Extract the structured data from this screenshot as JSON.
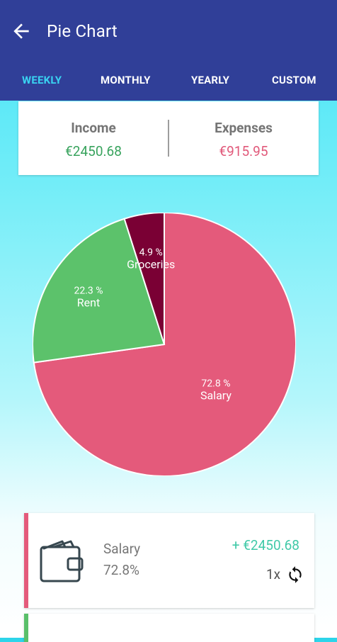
{
  "header": {
    "title": "Pie Chart",
    "background": "#303f98"
  },
  "tabs": [
    {
      "label": "WEEKLY",
      "active": true
    },
    {
      "label": "MONTHLY",
      "active": false
    },
    {
      "label": "YEARLY",
      "active": false
    },
    {
      "label": "CUSTOM",
      "active": false
    }
  ],
  "summary": {
    "income_label": "Income",
    "income_value": "€2450.68",
    "expenses_label": "Expenses",
    "expenses_value": "€915.95",
    "income_color": "#38a35d",
    "expense_color": "#e1597a"
  },
  "chart_data": {
    "type": "pie",
    "slices": [
      {
        "label": "Salary",
        "percent": 72.8,
        "percent_text": "72.8 %",
        "color": "#e45a7b"
      },
      {
        "label": "Rent",
        "percent": 22.3,
        "percent_text": "22.3 %",
        "color": "#5cc26b"
      },
      {
        "label": "Groceries",
        "percent": 4.9,
        "percent_text": "4.9 %",
        "color": "#7a0034"
      }
    ]
  },
  "entries": [
    {
      "category": "Salary",
      "percent": "72.8%",
      "amount": "+ €2450.68",
      "repeat": "1x",
      "icon": "wallet-icon",
      "accent": "#e45a7b"
    },
    {
      "accent": "#59c06a"
    }
  ]
}
